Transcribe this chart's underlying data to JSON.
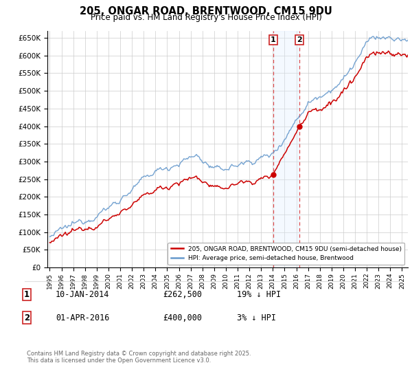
{
  "title": "205, ONGAR ROAD, BRENTWOOD, CM15 9DU",
  "subtitle": "Price paid vs. HM Land Registry's House Price Index (HPI)",
  "ylabel_ticks": [
    0,
    50000,
    100000,
    150000,
    200000,
    250000,
    300000,
    350000,
    400000,
    450000,
    500000,
    550000,
    600000,
    650000
  ],
  "ylim": [
    0,
    670000
  ],
  "xlim_start": 1994.8,
  "xlim_end": 2025.5,
  "purchase1_date": 2014.04,
  "purchase1_price": 262500,
  "purchase1_label": "1",
  "purchase2_date": 2016.25,
  "purchase2_price": 400000,
  "purchase2_label": "2",
  "legend_line1": "205, ONGAR ROAD, BRENTWOOD, CM15 9DU (semi-detached house)",
  "legend_line2": "HPI: Average price, semi-detached house, Brentwood",
  "line_red_color": "#cc0000",
  "line_blue_color": "#6699cc",
  "footnote": "Contains HM Land Registry data © Crown copyright and database right 2025.\nThis data is licensed under the Open Government Licence v3.0.",
  "background_color": "#ffffff",
  "grid_color": "#cccccc",
  "shade_color": "#ddeeff",
  "dashed_color": "#e05050",
  "table_rows": [
    [
      "1",
      "10-JAN-2014",
      "£262,500",
      "19% ↓ HPI"
    ],
    [
      "2",
      "01-APR-2016",
      "£400,000",
      "3% ↓ HPI"
    ]
  ]
}
